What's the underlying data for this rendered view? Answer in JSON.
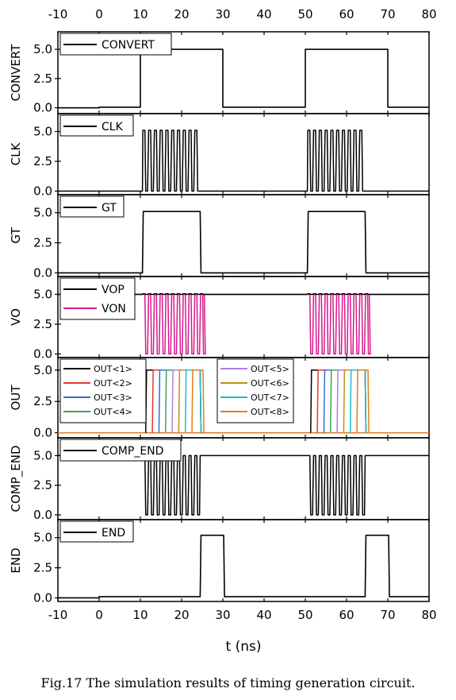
{
  "caption": "Fig.17 The simulation results of timing generation circuit.",
  "chart_data": {
    "type": "line",
    "xlabel": "t (ns)",
    "xlim": [
      -10,
      80
    ],
    "xticks": [
      "-10",
      "0",
      "10",
      "20",
      "30",
      "40",
      "50",
      "60",
      "70",
      "80"
    ],
    "panels": [
      {
        "id": "convert",
        "ylabel": "CONVERT",
        "ylim": [
          -0.5,
          6.5
        ],
        "yticks": [
          "0.0",
          "2.5",
          "5.0"
        ],
        "legend": [
          {
            "name": "CONVERT",
            "color": "#000000"
          }
        ],
        "series": [
          {
            "name": "CONVERT",
            "color": "#000000",
            "x": [
              -10,
              0,
              0,
              10,
              10,
              30,
              30,
              50,
              50,
              70,
              70,
              80
            ],
            "y": [
              0,
              0,
              0.05,
              0.05,
              5,
              5,
              0.05,
              0.05,
              5,
              5,
              0.05,
              0.05
            ]
          }
        ]
      },
      {
        "id": "clk",
        "ylabel": "CLK",
        "ylim": [
          -0.3,
          6.5
        ],
        "yticks": [
          "0.0",
          "2.5",
          "5.0"
        ],
        "legend": [
          {
            "name": "CLK",
            "color": "#000000"
          }
        ],
        "pulse_trains": [
          {
            "name": "CLK",
            "color": "#000000",
            "bursts": [
              [
                10.5,
                24.5
              ],
              [
                50.5,
                64.5
              ]
            ],
            "period": 1.4,
            "low": 0,
            "high": 5.1
          }
        ]
      },
      {
        "id": "gt",
        "ylabel": "GT",
        "ylim": [
          -0.3,
          6.5
        ],
        "yticks": [
          "0.0",
          "2.5",
          "5.0"
        ],
        "legend": [
          {
            "name": "GT",
            "color": "#000000"
          }
        ],
        "series": [
          {
            "name": "GT",
            "color": "#000000",
            "x": [
              -10,
              10.5,
              10.7,
              24.5,
              24.7,
              50.5,
              50.7,
              64.5,
              64.7,
              80
            ],
            "y": [
              0,
              0,
              5.1,
              5.1,
              0,
              0,
              5.1,
              5.1,
              0,
              0
            ]
          }
        ]
      },
      {
        "id": "vo",
        "ylabel": "VO",
        "ylim": [
          -0.3,
          6.5
        ],
        "yticks": [
          "0.0",
          "2.5",
          "5.0"
        ],
        "legend": [
          {
            "name": "VOP",
            "color": "#000000"
          },
          {
            "name": "VON",
            "color": "#d6188c"
          }
        ],
        "pulse_trains": [
          {
            "name": "VON",
            "color": "#d6188c",
            "bursts": [
              [
                10.5,
                25.5
              ],
              [
                50.5,
                65.5
              ]
            ],
            "period": 1.4,
            "low": 0,
            "high": 5,
            "baseline": 5
          },
          {
            "name": "VOP",
            "color": "#000000",
            "bursts": [
              [
                10.5,
                25.5
              ],
              [
                50.5,
                65.5
              ]
            ],
            "period": 1.4,
            "low": 5,
            "high": 5.05,
            "baseline": 5
          }
        ]
      },
      {
        "id": "out",
        "ylabel": "OUT",
        "ylim": [
          -0.4,
          6.0
        ],
        "yticks": [
          "0.0",
          "2.5",
          "5.0"
        ],
        "legend": [
          {
            "name": "OUT<1>",
            "color": "#000000"
          },
          {
            "name": "OUT<2>",
            "color": "#e8382c"
          },
          {
            "name": "OUT<3>",
            "color": "#2f6fd6"
          },
          {
            "name": "OUT<4>",
            "color": "#3aa55a"
          },
          {
            "name": "OUT<5>",
            "color": "#b07fe0"
          },
          {
            "name": "OUT<6>",
            "color": "#c09010"
          },
          {
            "name": "OUT<7>",
            "color": "#17c0cf"
          },
          {
            "name": "OUT<8>",
            "color": "#e87a1c"
          }
        ],
        "pulse_starts": [
          [
            11.5,
            51.5
          ],
          [
            13.1,
            53.1
          ],
          [
            14.7,
            54.7
          ],
          [
            16.3,
            56.3
          ],
          [
            17.9,
            57.9
          ],
          [
            19.5,
            59.5
          ],
          [
            21.1,
            61.1
          ],
          [
            22.7,
            62.7
          ]
        ],
        "pulse_ends": [
          [
            24.5,
            64.5
          ],
          [
            24.5,
            64.5
          ],
          [
            24.5,
            64.5
          ],
          [
            24.5,
            64.5
          ],
          [
            24.5,
            64.5
          ],
          [
            24.5,
            64.5
          ],
          [
            24.5,
            64.5
          ],
          [
            25.2,
            65.2
          ]
        ],
        "high": 5
      },
      {
        "id": "comp_end",
        "ylabel": "COMP_END",
        "ylim": [
          -0.4,
          6.5
        ],
        "yticks": [
          "0.0",
          "2.5",
          "5.0"
        ],
        "legend": [
          {
            "name": "COMP_END",
            "color": "#000000"
          }
        ],
        "pulse_trains": [
          {
            "name": "COMP_END",
            "color": "#000000",
            "bursts": [
              [
                10.5,
                24.5
              ],
              [
                50.5,
                64.5
              ]
            ],
            "period": 1.4,
            "low": 0,
            "high": 5,
            "baseline": 5
          }
        ]
      },
      {
        "id": "end",
        "ylabel": "END",
        "ylim": [
          -0.3,
          6.5
        ],
        "yticks": [
          "0.0",
          "2.5",
          "5.0"
        ],
        "legend": [
          {
            "name": "END",
            "color": "#000000"
          }
        ],
        "series": [
          {
            "name": "END",
            "color": "#000000",
            "x": [
              -10,
              0,
              0,
              24.5,
              24.7,
              30.2,
              30.4,
              64.5,
              64.7,
              70.2,
              70.4,
              80
            ],
            "y": [
              0,
              0,
              0.1,
              0.1,
              5.2,
              5.2,
              0.1,
              0.1,
              5.2,
              5.2,
              0.1,
              0.1
            ]
          }
        ]
      }
    ]
  }
}
